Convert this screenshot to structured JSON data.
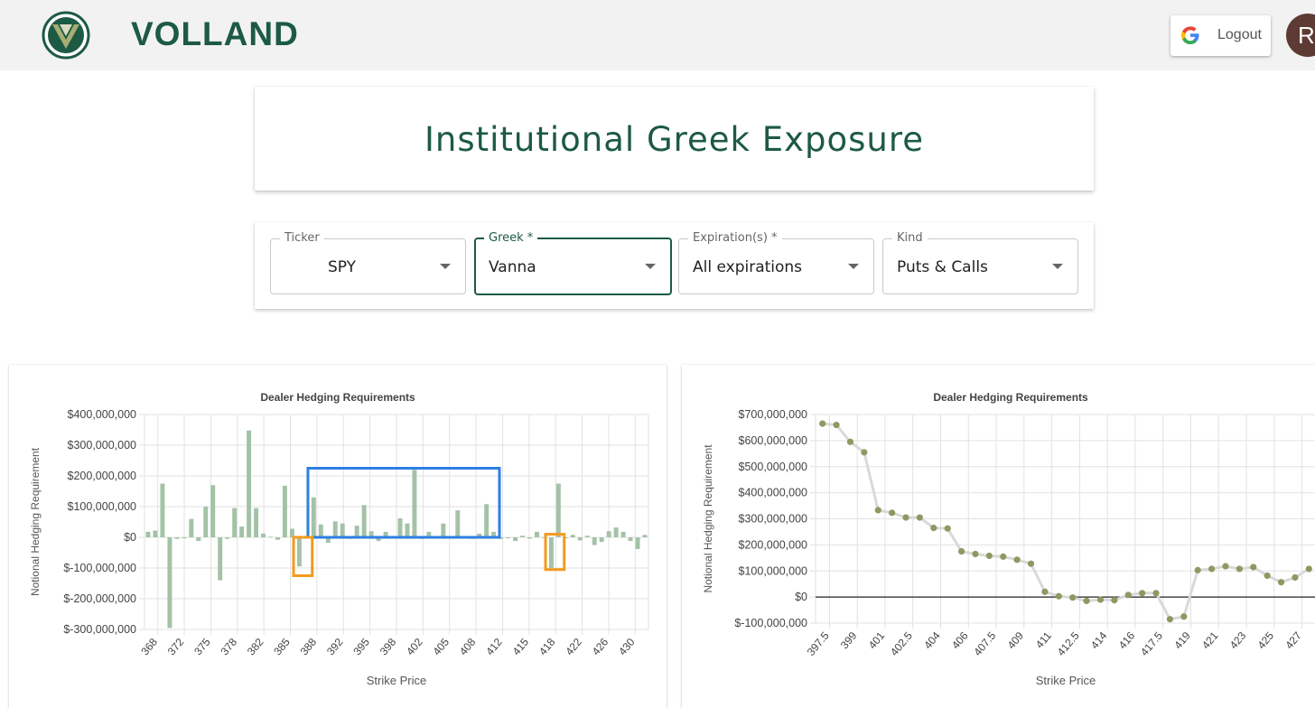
{
  "header": {
    "brand": "VOLLAND",
    "logout_label": "Logout",
    "avatar_initial": "R",
    "google_icon": "google-g-icon",
    "logo_icon": "volland-logo-icon"
  },
  "title_card": {
    "title": "Institutional Greek Exposure"
  },
  "filters": [
    {
      "label": "Ticker",
      "value": "SPY"
    },
    {
      "label": "Greek *",
      "value": "Vanna"
    },
    {
      "label": "Expiration(s) *",
      "value": "All expirations"
    },
    {
      "label": "Kind",
      "value": "Puts & Calls"
    }
  ],
  "colors": {
    "brand": "#1d5a43",
    "bar": "#a3c2a7",
    "line_point": "#8c9a62",
    "line": "#d9d9d9",
    "highlight_blue": "#2f7fe3",
    "highlight_orange": "#f39a1e"
  },
  "chart_data": [
    {
      "type": "bar",
      "title": "Dealer Hedging Requirements",
      "xlabel": "Strike Price",
      "ylabel": "Notional Hedging Requirement",
      "ylim": [
        -300000000,
        400000000
      ],
      "y_ticks": [
        "$400,000,000",
        "$300,000,000",
        "$200,000,000",
        "$100,000,000",
        "$0",
        "$-100,000,000",
        "$-200,000,000",
        "$-300,000,000"
      ],
      "x_ticks": [
        "368",
        "372",
        "375",
        "378",
        "382",
        "385",
        "388",
        "392",
        "395",
        "398",
        "402",
        "405",
        "408",
        "412",
        "415",
        "418",
        "422",
        "426",
        "430"
      ],
      "grid": true,
      "values": [
        18000000,
        22000000,
        175000000,
        -295000000,
        -5000000,
        -3000000,
        60000000,
        -12000000,
        100000000,
        170000000,
        -140000000,
        -5000000,
        95000000,
        35000000,
        348000000,
        95000000,
        12000000,
        2000000,
        -8000000,
        168000000,
        28000000,
        -95000000,
        5000000,
        130000000,
        42000000,
        -18000000,
        52000000,
        45000000,
        -5000000,
        38000000,
        105000000,
        20000000,
        -12000000,
        18000000,
        -3000000,
        62000000,
        45000000,
        220000000,
        -5000000,
        18000000,
        -3000000,
        45000000,
        -2000000,
        88000000,
        -3000000,
        -5000000,
        12000000,
        108000000,
        18000000,
        -5000000,
        -3000000,
        -12000000,
        5000000,
        -4000000,
        18000000,
        -2000000,
        -100000000,
        175000000,
        -3000000,
        8000000,
        -10000000,
        5000000,
        -25000000,
        -15000000,
        20000000,
        32000000,
        18000000,
        -12000000,
        -38000000,
        8000000
      ],
      "highlights": [
        {
          "color": "blue",
          "from_index": 23,
          "to_index": 48,
          "y_from": 0,
          "y_to": 225000000
        },
        {
          "color": "orange",
          "from_index": 21,
          "to_index": 22,
          "y_from": -125000000,
          "y_to": 0
        },
        {
          "color": "orange",
          "from_index": 56,
          "to_index": 57,
          "y_from": -105000000,
          "y_to": 10000000
        }
      ]
    },
    {
      "type": "line",
      "title": "Dealer Hedging Requirements",
      "xlabel": "Strike Price",
      "ylabel": "Notional Hedging Requirement",
      "ylim": [
        -100000000,
        700000000
      ],
      "y_ticks": [
        "$700,000,000",
        "$600,000,000",
        "$500,000,000",
        "$400,000,000",
        "$300,000,000",
        "$200,000,000",
        "$100,000,000",
        "$0",
        "$-100,000,000"
      ],
      "x_ticks": [
        "397.5",
        "399",
        "401",
        "402.5",
        "404",
        "406",
        "407.5",
        "409",
        "411",
        "412.5",
        "414",
        "416",
        "417.5",
        "419",
        "421",
        "423",
        "425",
        "427"
      ],
      "grid": true,
      "values": [
        665000000,
        660000000,
        595000000,
        555000000,
        333000000,
        323000000,
        305000000,
        305000000,
        265000000,
        263000000,
        175000000,
        165000000,
        158000000,
        155000000,
        143000000,
        128000000,
        20000000,
        3000000,
        -2000000,
        -15000000,
        -10000000,
        -12000000,
        8000000,
        15000000,
        15000000,
        -85000000,
        -75000000,
        103000000,
        108000000,
        118000000,
        108000000,
        115000000,
        82000000,
        57000000,
        75000000,
        108000000
      ]
    }
  ]
}
